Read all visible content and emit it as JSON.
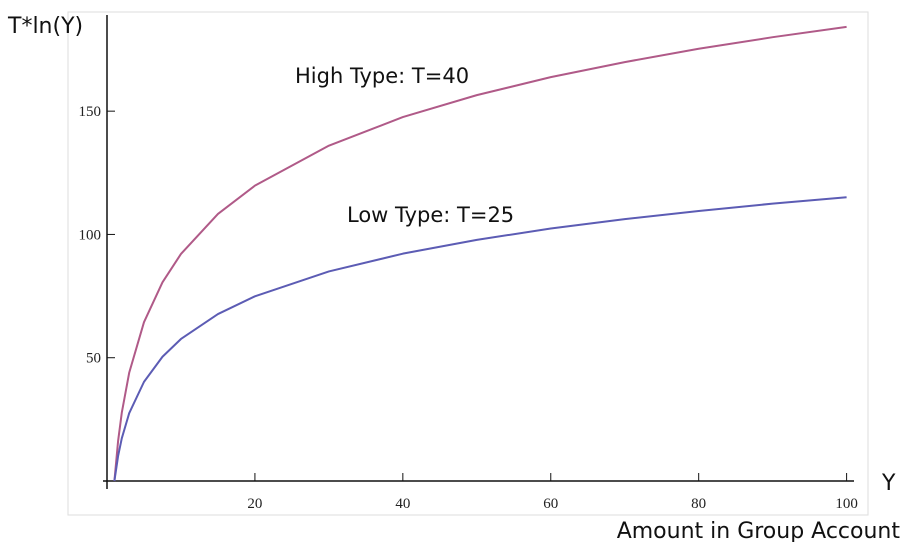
{
  "chart_data": {
    "type": "line",
    "ylabel": "T*ln(Y)",
    "xlabel": "Y",
    "x_title": "Amount in Group Account",
    "x": [
      1,
      1.5,
      2,
      3,
      5,
      7.5,
      10,
      15,
      20,
      30,
      40,
      50,
      60,
      70,
      80,
      90,
      100
    ],
    "series": [
      {
        "name": "High Type: T=40",
        "color": "#b05a88",
        "values": [
          0,
          16.2,
          27.7,
          43.9,
          64.4,
          80.6,
          92.1,
          108.3,
          119.8,
          136.0,
          147.6,
          156.5,
          163.8,
          169.9,
          175.3,
          180.0,
          184.2
        ]
      },
      {
        "name": "Low Type: T=25",
        "color": "#5c5cb4",
        "values": [
          0,
          10.1,
          17.3,
          27.5,
          40.2,
          50.4,
          57.6,
          67.7,
          74.9,
          85.0,
          92.2,
          97.8,
          102.4,
          106.2,
          109.5,
          112.5,
          115.1
        ]
      }
    ],
    "xlim": [
      0,
      101
    ],
    "ylim": [
      0,
      189
    ],
    "xticks": [
      20,
      40,
      60,
      80,
      100
    ],
    "yticks": [
      50,
      100,
      150
    ],
    "grid": false
  }
}
